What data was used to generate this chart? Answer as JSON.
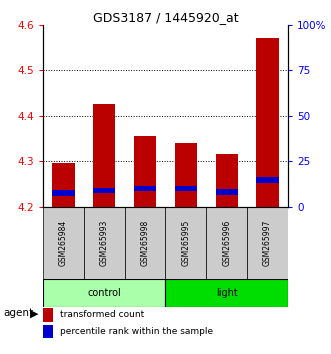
{
  "title": "GDS3187 / 1445920_at",
  "samples": [
    "GSM265984",
    "GSM265993",
    "GSM265998",
    "GSM265995",
    "GSM265996",
    "GSM265997"
  ],
  "groups": [
    "control",
    "control",
    "control",
    "light",
    "light",
    "light"
  ],
  "red_values": [
    4.295,
    4.425,
    4.355,
    4.34,
    4.315,
    4.57
  ],
  "blue_values": [
    4.23,
    4.235,
    4.24,
    4.24,
    4.232,
    4.258
  ],
  "y_min": 4.2,
  "y_max": 4.6,
  "y_ticks": [
    4.2,
    4.3,
    4.4,
    4.5,
    4.6
  ],
  "right_y_ticks": [
    0,
    25,
    50,
    75,
    100
  ],
  "right_y_labels": [
    "0",
    "25",
    "50",
    "75",
    "100%"
  ],
  "bar_width": 0.55,
  "bar_color_red": "#bb0000",
  "bar_color_blue": "#0000cc",
  "control_color": "#aaffaa",
  "light_color": "#00dd00",
  "group_bg_color": "#cccccc",
  "legend_red": "transformed count",
  "legend_blue": "percentile rank within the sample",
  "agent_label": "agent",
  "blue_bar_height": 0.012
}
